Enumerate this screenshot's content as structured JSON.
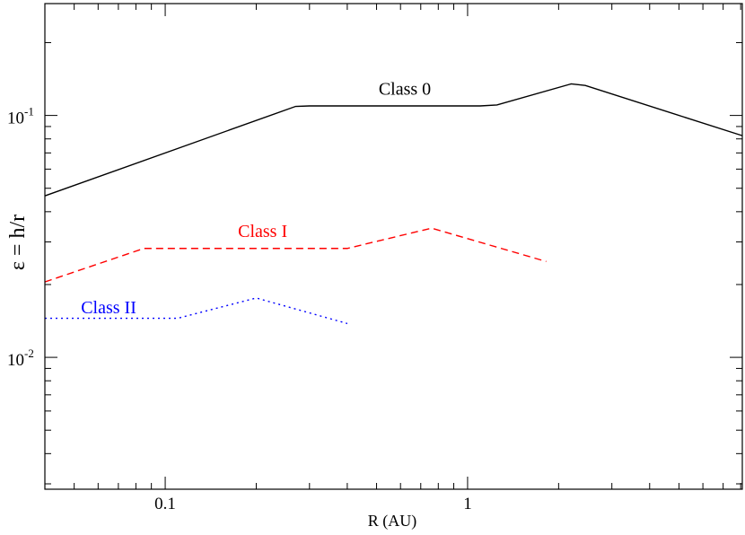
{
  "chart_data": {
    "type": "line",
    "title": "",
    "xlabel": "R (AU)",
    "ylabel": "ε = h/r",
    "xscale": "log",
    "yscale": "log",
    "xlim": [
      0.04,
      8.1
    ],
    "ylim": [
      0.00285,
      0.29
    ],
    "grid": false,
    "legend": "none",
    "x_ticks": [
      {
        "value": 0.1,
        "label": "0.1"
      },
      {
        "value": 1,
        "label": "1"
      }
    ],
    "y_ticks": [
      {
        "value": 0.01,
        "base": "10",
        "exp": "-2"
      },
      {
        "value": 0.1,
        "base": "10",
        "exp": "-1"
      }
    ],
    "series": [
      {
        "name": "Class 0",
        "color": "#000000",
        "dash": "solid",
        "label_at": [
          0.62,
          0.122
        ],
        "x": [
          0.04,
          0.27,
          0.3,
          1.1,
          1.25,
          2.2,
          2.45,
          8.1
        ],
        "y": [
          0.0465,
          0.109,
          0.1095,
          0.1095,
          0.1105,
          0.135,
          0.133,
          0.0825
        ]
      },
      {
        "name": "Class I",
        "color": "#ff0000",
        "dash": "dashed",
        "label_at": [
          0.21,
          0.0315
        ],
        "x": [
          0.04,
          0.085,
          0.4,
          0.76,
          1.82
        ],
        "y": [
          0.0205,
          0.0282,
          0.0282,
          0.0342,
          0.0249
        ]
      },
      {
        "name": "Class II",
        "color": "#0000ff",
        "dash": "dotted",
        "label_at": [
          0.065,
          0.0152
        ],
        "x": [
          0.04,
          0.11,
          0.2,
          0.4
        ],
        "y": [
          0.0145,
          0.0145,
          0.0176,
          0.0138
        ]
      }
    ]
  }
}
